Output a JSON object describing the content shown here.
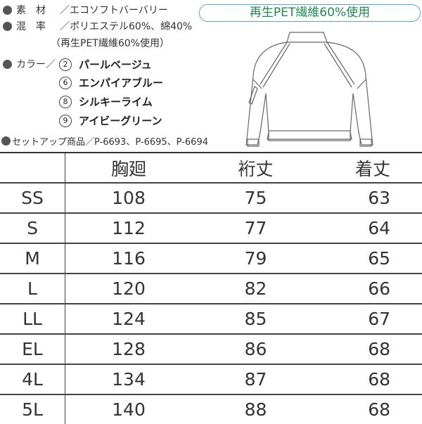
{
  "specs": {
    "material": {
      "label": "素　材",
      "value": "／エコソフトバーバリー"
    },
    "blend": {
      "label": "混　率",
      "value": "／ポリエステル60%、綿40%",
      "note": "（再生PET繊維60%使用）"
    },
    "color": {
      "label": "カラー",
      "sep": "／"
    },
    "colors": [
      {
        "num": "2",
        "name": "パールベージュ"
      },
      {
        "num": "6",
        "name": "エンパイアブルー"
      },
      {
        "num": "8",
        "name": "シルキーライム"
      },
      {
        "num": "9",
        "name": "アイビーグリーン"
      }
    ],
    "setup": "セットアップ商品／P-6693、P-6695、P-6694"
  },
  "badge": "再生PET繊維60%使用",
  "colors_theme": {
    "badge_text": "#1f8a55",
    "badge_border": "#5aa9c7"
  },
  "table": {
    "headers": [
      "",
      "胸廻",
      "裄丈",
      "着丈"
    ],
    "rows": [
      [
        "SS",
        "108",
        "75",
        "63"
      ],
      [
        "S",
        "112",
        "77",
        "64"
      ],
      [
        "M",
        "116",
        "79",
        "65"
      ],
      [
        "L",
        "120",
        "82",
        "66"
      ],
      [
        "LL",
        "124",
        "85",
        "67"
      ],
      [
        "EL",
        "128",
        "86",
        "68"
      ],
      [
        "4L",
        "134",
        "87",
        "68"
      ],
      [
        "5L",
        "140",
        "88",
        "68"
      ]
    ]
  }
}
